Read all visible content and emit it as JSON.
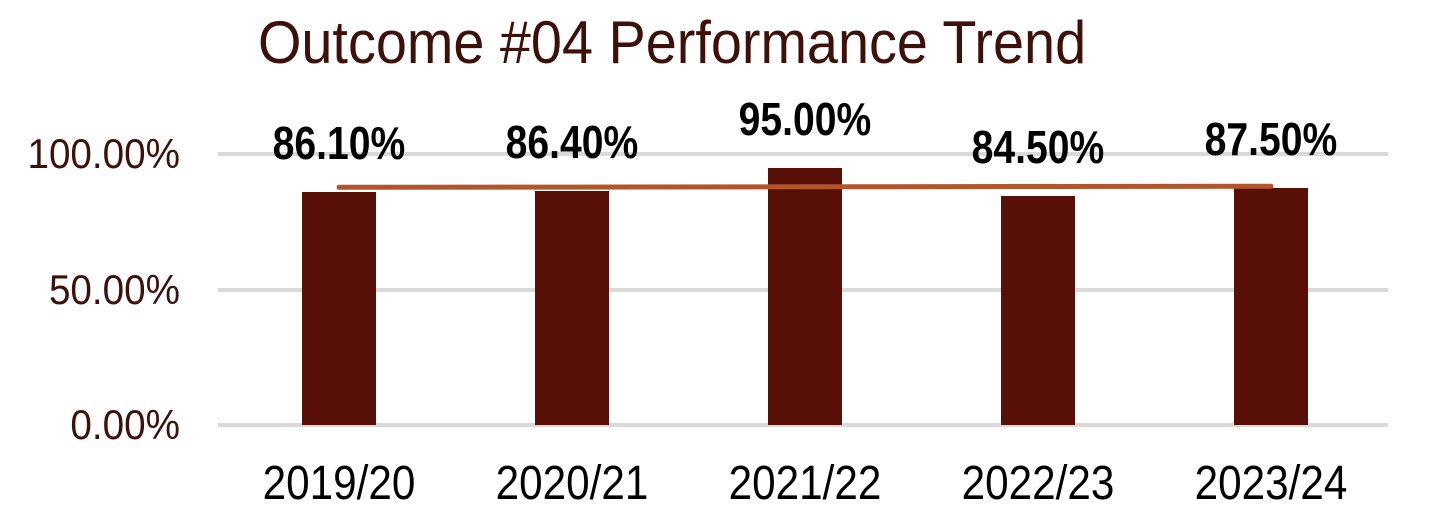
{
  "colors": {
    "bar": "#570F08",
    "trend_line": "#B2552A",
    "gridline": "#D9D9D9",
    "axis_text": "#3D100A",
    "label_text": "#000000",
    "background": "#FFFFFF"
  },
  "chart_data": {
    "type": "bar",
    "title": "Outcome #04 Performance Trend",
    "categories": [
      "2019/20",
      "2020/21",
      "2021/22",
      "2022/23",
      "2023/24"
    ],
    "series": [
      {
        "name": "performance-bars",
        "type": "bar",
        "values": [
          86.1,
          86.4,
          95.0,
          84.5,
          87.5
        ]
      },
      {
        "name": "trend-line",
        "type": "line",
        "values": [
          87.7,
          87.8,
          87.9,
          88.0,
          88.1
        ]
      }
    ],
    "data_labels": [
      "86.10%",
      "86.40%",
      "95.00%",
      "84.50%",
      "87.50%"
    ],
    "y_ticks": [
      {
        "label": "100.00%",
        "value": 100
      },
      {
        "label": "50.00%",
        "value": 50
      },
      {
        "label": "0.00%",
        "value": 0
      }
    ],
    "ylim": [
      0,
      100
    ],
    "xlabel": "",
    "ylabel": "",
    "grid": true,
    "legend": "none"
  }
}
